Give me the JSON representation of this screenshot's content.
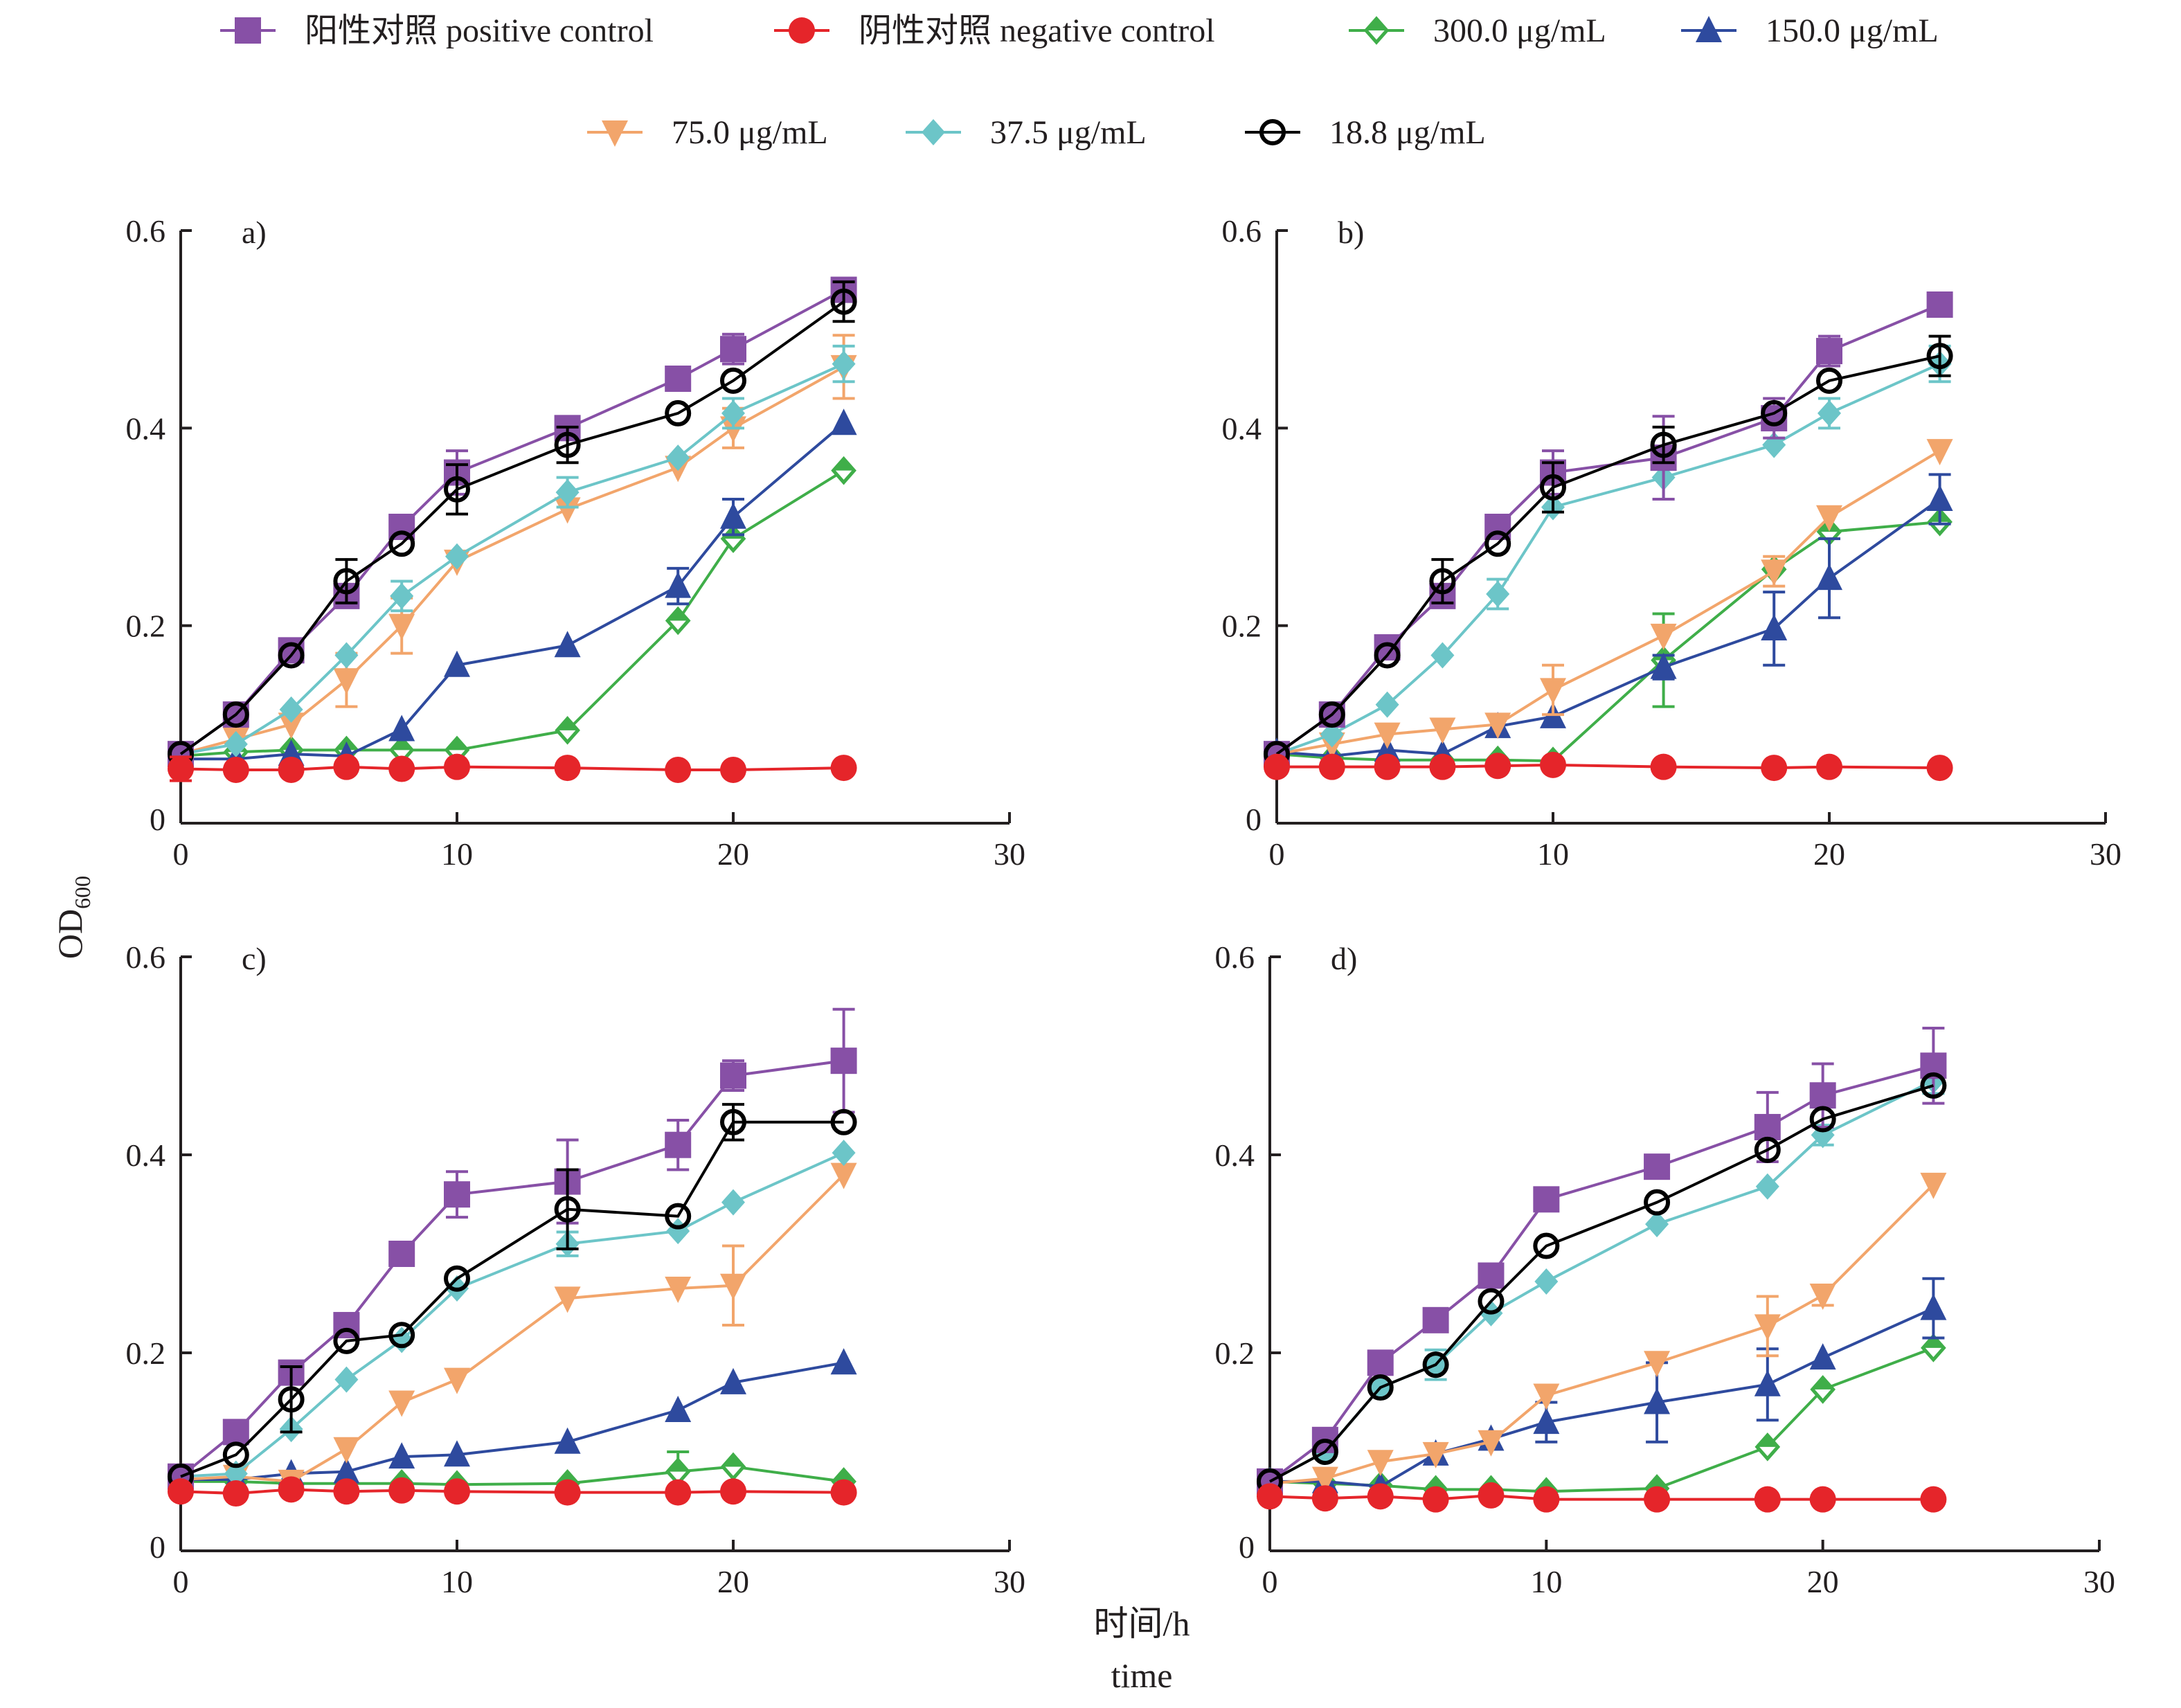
{
  "chart_data": {
    "type": "line",
    "legend": {
      "placement": "top",
      "entries": [
        {
          "key": "pos",
          "label": "阳性对照 positive control",
          "color": "#8750a6",
          "marker": "square"
        },
        {
          "key": "neg",
          "label": "阴性对照 negative control",
          "color": "#e5252a",
          "marker": "circle"
        },
        {
          "key": "c300",
          "label": "300.0 μg/mL",
          "color": "#3fae49",
          "marker": "diamond-open"
        },
        {
          "key": "c150",
          "label": "150.0 μg/mL",
          "color": "#2e4a9e",
          "marker": "triangle-up"
        },
        {
          "key": "c75",
          "label": "75.0 μg/mL",
          "color": "#f2a56b",
          "marker": "triangle-down"
        },
        {
          "key": "c37",
          "label": "37.5 μg/mL",
          "color": "#6cc5c8",
          "marker": "diamond"
        },
        {
          "key": "c18",
          "label": "18.8 μg/mL",
          "color": "#000000",
          "marker": "circle-open"
        }
      ]
    },
    "ylabel": "OD",
    "ylabel_sub": "600",
    "xlabel_cn": "时间/h",
    "xlabel_en": "time",
    "xlim": [
      0,
      30
    ],
    "ylim": [
      0,
      0.6
    ],
    "xticks": [
      "0",
      "10",
      "20",
      "30"
    ],
    "yticks": [
      "0",
      "0.2",
      "0.4",
      "0.6"
    ],
    "x": [
      0,
      2,
      4,
      6,
      8,
      10,
      14,
      18,
      20,
      24
    ],
    "panels": [
      {
        "label": "a)",
        "series": [
          {
            "key": "c300",
            "values": [
              0.068,
              0.072,
              0.074,
              0.074,
              0.074,
              0.074,
              0.094,
              0.205,
              0.288,
              0.357
            ]
          },
          {
            "key": "c150",
            "values": [
              0.065,
              0.065,
              0.07,
              0.068,
              0.095,
              0.16,
              0.18,
              0.24,
              0.31,
              0.405
            ],
            "err": [
              0,
              0,
              0,
              0,
              0,
              0,
              0,
              0.018,
              0.018,
              0
            ]
          },
          {
            "key": "c75",
            "values": [
              0.07,
              0.085,
              0.1,
              0.145,
              0.2,
              0.265,
              0.318,
              0.36,
              0.4,
              0.462
            ],
            "err": [
              0,
              0,
              0,
              0.027,
              0.028,
              0,
              0,
              0,
              0.02,
              0.032
            ]
          },
          {
            "key": "c37",
            "values": [
              0.07,
              0.08,
              0.115,
              0.17,
              0.23,
              0.27,
              0.335,
              0.37,
              0.415,
              0.465
            ],
            "err": [
              0,
              0,
              0,
              0,
              0.015,
              0,
              0.015,
              0,
              0.015,
              0.018
            ]
          },
          {
            "key": "pos",
            "values": [
              0.07,
              0.11,
              0.175,
              0.23,
              0.3,
              0.355,
              0.4,
              0.45,
              0.48,
              0.54
            ],
            "err": [
              0,
              0,
              0,
              0,
              0,
              0.022,
              0,
              0,
              0.015,
              0
            ]
          },
          {
            "key": "c18",
            "values": [
              0.07,
              0.11,
              0.17,
              0.245,
              0.283,
              0.338,
              0.383,
              0.415,
              0.448,
              0.528
            ],
            "err": [
              0,
              0,
              0,
              0.022,
              0,
              0.025,
              0.018,
              0,
              0,
              0.02
            ]
          },
          {
            "key": "neg",
            "values": [
              0.055,
              0.054,
              0.054,
              0.057,
              0.055,
              0.057,
              0.056,
              0.054,
              0.054,
              0.056
            ],
            "err": [
              0.012,
              0,
              0,
              0,
              0,
              0,
              0,
              0,
              0,
              0
            ]
          }
        ]
      },
      {
        "label": "b)",
        "series": [
          {
            "key": "c300",
            "values": [
              0.07,
              0.066,
              0.064,
              0.064,
              0.064,
              0.063,
              0.165,
              0.257,
              0.295,
              0.305
            ],
            "err": [
              0,
              0,
              0,
              0,
              0,
              0,
              0.047,
              0,
              0,
              0
            ]
          },
          {
            "key": "c150",
            "values": [
              0.072,
              0.068,
              0.074,
              0.07,
              0.098,
              0.108,
              0.158,
              0.197,
              0.248,
              0.328
            ],
            "err": [
              0,
              0,
              0,
              0,
              0,
              0,
              0.012,
              0.037,
              0.04,
              0.025
            ]
          },
          {
            "key": "c75",
            "values": [
              0.07,
              0.08,
              0.09,
              0.095,
              0.1,
              0.135,
              0.19,
              0.255,
              0.31,
              0.377
            ],
            "err": [
              0,
              0,
              0,
              0,
              0,
              0.025,
              0,
              0.015,
              0,
              0
            ]
          },
          {
            "key": "c37",
            "values": [
              0.07,
              0.09,
              0.12,
              0.17,
              0.232,
              0.32,
              0.35,
              0.383,
              0.415,
              0.465
            ],
            "err": [
              0,
              0,
              0,
              0,
              0.015,
              0,
              0.022,
              0,
              0.015,
              0.018
            ]
          },
          {
            "key": "pos",
            "values": [
              0.07,
              0.11,
              0.178,
              0.23,
              0.3,
              0.355,
              0.37,
              0.41,
              0.478,
              0.525
            ],
            "err": [
              0,
              0.01,
              0,
              0,
              0,
              0.022,
              0.042,
              0.02,
              0.015,
              0
            ]
          },
          {
            "key": "c18",
            "values": [
              0.07,
              0.11,
              0.17,
              0.245,
              0.283,
              0.34,
              0.383,
              0.415,
              0.448,
              0.473
            ],
            "err": [
              0,
              0,
              0,
              0.022,
              0,
              0.025,
              0.018,
              0,
              0,
              0.02
            ]
          },
          {
            "key": "neg",
            "values": [
              0.057,
              0.057,
              0.057,
              0.057,
              0.058,
              0.059,
              0.057,
              0.056,
              0.057,
              0.056
            ]
          }
        ]
      },
      {
        "label": "c)",
        "series": [
          {
            "key": "c300",
            "values": [
              0.07,
              0.07,
              0.068,
              0.068,
              0.068,
              0.067,
              0.068,
              0.08,
              0.085,
              0.07
            ],
            "err": [
              0,
              0,
              0,
              0,
              0,
              0,
              0,
              0.02,
              0,
              0
            ]
          },
          {
            "key": "c150",
            "values": [
              0.072,
              0.072,
              0.078,
              0.08,
              0.095,
              0.097,
              0.11,
              0.142,
              0.17,
              0.19
            ]
          },
          {
            "key": "c75",
            "values": [
              0.072,
              0.075,
              0.07,
              0.103,
              0.15,
              0.173,
              0.255,
              0.265,
              0.268,
              0.38
            ],
            "err": [
              0,
              0,
              0,
              0,
              0,
              0,
              0,
              0,
              0.04,
              0
            ]
          },
          {
            "key": "c37",
            "values": [
              0.075,
              0.078,
              0.123,
              0.173,
              0.213,
              0.265,
              0.31,
              0.323,
              0.352,
              0.402
            ],
            "err": [
              0,
              0,
              0,
              0,
              0,
              0,
              0.012,
              0,
              0,
              0
            ]
          },
          {
            "key": "pos",
            "values": [
              0.075,
              0.12,
              0.18,
              0.228,
              0.3,
              0.36,
              0.373,
              0.41,
              0.48,
              0.495
            ],
            "err": [
              0,
              0.01,
              0,
              0,
              0,
              0.023,
              0.042,
              0.025,
              0.015,
              0.052
            ]
          },
          {
            "key": "c18",
            "values": [
              0.075,
              0.097,
              0.153,
              0.212,
              0.218,
              0.275,
              0.345,
              0.338,
              0.433,
              0.433
            ],
            "err": [
              0,
              0,
              0.033,
              0,
              0,
              0,
              0.04,
              0,
              0.018,
              0
            ]
          },
          {
            "key": "neg",
            "values": [
              0.06,
              0.058,
              0.062,
              0.06,
              0.061,
              0.06,
              0.059,
              0.059,
              0.06,
              0.059
            ]
          }
        ]
      },
      {
        "label": "d)",
        "series": [
          {
            "key": "c300",
            "values": [
              0.07,
              0.068,
              0.066,
              0.062,
              0.062,
              0.06,
              0.063,
              0.105,
              0.163,
              0.205
            ]
          },
          {
            "key": "c150",
            "values": [
              0.07,
              0.07,
              0.065,
              0.098,
              0.113,
              0.13,
              0.15,
              0.168,
              0.195,
              0.245
            ],
            "err": [
              0,
              0,
              0,
              0,
              0,
              0.02,
              0.04,
              0.036,
              0,
              0.03
            ]
          },
          {
            "key": "c75",
            "values": [
              0.068,
              0.073,
              0.09,
              0.098,
              0.11,
              0.157,
              0.19,
              0.227,
              0.258,
              0.37
            ],
            "err": [
              0,
              0,
              0,
              0,
              0,
              0,
              0,
              0.03,
              0.01,
              0
            ]
          },
          {
            "key": "c37",
            "values": [
              0.07,
              0.1,
              0.165,
              0.188,
              0.24,
              0.272,
              0.33,
              0.368,
              0.42,
              0.475
            ],
            "err": [
              0,
              0,
              0,
              0.015,
              0,
              0,
              0,
              0,
              0.01,
              0.013
            ]
          },
          {
            "key": "pos",
            "values": [
              0.07,
              0.112,
              0.19,
              0.233,
              0.278,
              0.355,
              0.388,
              0.428,
              0.46,
              0.49
            ],
            "err": [
              0,
              0,
              0,
              0,
              0,
              0,
              0,
              0.035,
              0.032,
              0.038
            ]
          },
          {
            "key": "c18",
            "values": [
              0.07,
              0.1,
              0.165,
              0.188,
              0.252,
              0.308,
              0.352,
              0.405,
              0.436,
              0.47
            ]
          },
          {
            "key": "neg",
            "values": [
              0.055,
              0.053,
              0.055,
              0.052,
              0.056,
              0.052,
              0.052,
              0.052,
              0.052,
              0.052
            ]
          }
        ]
      }
    ]
  }
}
